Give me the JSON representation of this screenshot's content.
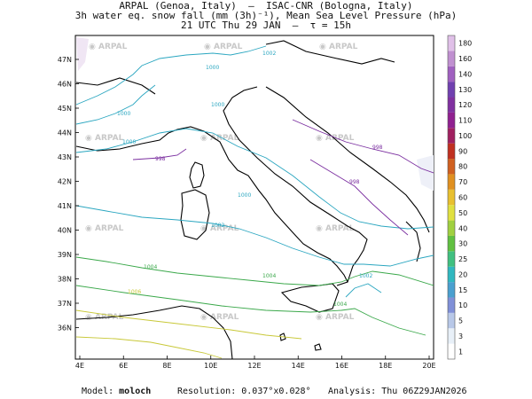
{
  "header": {
    "line1": "ARPAL (Genoa, Italy)  —  ISAC-CNR (Bologna, Italy)",
    "line2": "3h water eq. snow fall (mm (3h)⁻¹), Mean Sea Level Pressure (hPa)",
    "line3": "21 UTC Thu 29 JAN  —  τ = 15h"
  },
  "map": {
    "lon_labels": [
      "4E",
      "6E",
      "8E",
      "10E",
      "12E",
      "14E",
      "16E",
      "18E",
      "20E"
    ],
    "lat_labels": [
      "47N",
      "46N",
      "45N",
      "44N",
      "43N",
      "42N",
      "41N",
      "40N",
      "39N",
      "38N",
      "37N",
      "36N"
    ],
    "watermark": "ARPAL",
    "isobars": [
      {
        "label": "1002",
        "color": "#2aa6c0"
      },
      {
        "label": "1000",
        "color": "#2aa6c0"
      },
      {
        "label": "1000",
        "color": "#2aa6c0"
      },
      {
        "label": "1000",
        "color": "#2aa6c0"
      },
      {
        "label": "1000",
        "color": "#2aa6c0"
      },
      {
        "label": "1000",
        "color": "#2aa6c0"
      },
      {
        "label": "998",
        "color": "#7b2fa0"
      },
      {
        "label": "998",
        "color": "#7b2fa0"
      },
      {
        "label": "998",
        "color": "#7b2fa0"
      },
      {
        "label": "1002",
        "color": "#2aa6c0"
      },
      {
        "label": "1004",
        "color": "#3aa84a"
      },
      {
        "label": "1004",
        "color": "#3aa84a"
      },
      {
        "label": "1004",
        "color": "#3aa84a"
      },
      {
        "label": "1006",
        "color": "#c8c838"
      },
      {
        "label": "1002",
        "color": "#2aa6c0"
      }
    ]
  },
  "colorbar": {
    "levels": [
      "1",
      "3",
      "5",
      "10",
      "15",
      "20",
      "25",
      "30",
      "40",
      "50",
      "60",
      "70",
      "80",
      "90",
      "100",
      "110",
      "120",
      "130",
      "140",
      "160",
      "180"
    ],
    "colors": [
      "#ffffff",
      "#e8f0f8",
      "#b8c8e8",
      "#8090d8",
      "#4aa0d0",
      "#30b8c0",
      "#40c080",
      "#60c040",
      "#a0d040",
      "#e0e040",
      "#e8c030",
      "#e09020",
      "#d06020",
      "#c03020",
      "#a02060",
      "#902090",
      "#8030a0",
      "#7040b0",
      "#a060c0",
      "#c090d0",
      "#e0c0e8"
    ]
  },
  "footer": {
    "model_label": "Model:",
    "model_value": "moloch",
    "resolution_label": "Resolution:",
    "resolution_value": "0.037°x0.028°",
    "analysis_label": "Analysis:",
    "analysis_value": "Thu 06Z29JAN2026"
  }
}
